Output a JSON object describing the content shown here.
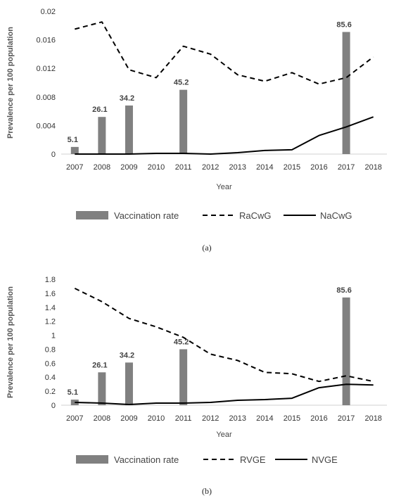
{
  "figure": {
    "caption_a": "(a)",
    "caption_b": "(b)"
  },
  "chart_data": [
    {
      "type": "bar",
      "panel": "a",
      "categories": [
        "2007",
        "2008",
        "2009",
        "2010",
        "2011",
        "2012",
        "2013",
        "2014",
        "2015",
        "2016",
        "2017",
        "2018"
      ],
      "xlabel": "Year",
      "ylabel": "Prevalence per 100 population",
      "ylim": [
        0,
        0.02
      ],
      "yticks": [
        "0",
        "0.004",
        "0.008",
        "0.012",
        "0.016",
        "0.02"
      ],
      "ytick_values": [
        0,
        0.004,
        0.008,
        0.012,
        0.016,
        0.02
      ],
      "grid": false,
      "legend_position": "bottom",
      "bars": {
        "name": "Vaccination rate",
        "color": "#808080",
        "values": [
          0.001,
          0.0052,
          0.0068,
          null,
          0.009,
          null,
          null,
          null,
          null,
          null,
          0.0171,
          null
        ],
        "labels": [
          "5.1",
          "26.1",
          "34.2",
          null,
          "45.2",
          null,
          null,
          null,
          null,
          null,
          "85.6",
          null
        ]
      },
      "series": [
        {
          "name": "RaCwG",
          "style": "dashed",
          "color": "#000000",
          "values": [
            0.0175,
            0.0185,
            0.0118,
            0.0107,
            0.0151,
            0.014,
            0.0111,
            0.0102,
            0.0114,
            0.0098,
            0.0107,
            0.0136
          ]
        },
        {
          "name": "NaCwG",
          "style": "solid",
          "color": "#000000",
          "values": [
            0.0,
            0.0,
            0.0,
            0.0001,
            0.0001,
            0.0,
            0.0002,
            0.0005,
            0.0006,
            0.0026,
            0.0038,
            0.0052
          ]
        }
      ]
    },
    {
      "type": "bar",
      "panel": "b",
      "categories": [
        "2007",
        "2008",
        "2009",
        "2010",
        "2011",
        "2012",
        "2013",
        "2014",
        "2015",
        "2016",
        "2017",
        "2018"
      ],
      "xlabel": "Year",
      "ylabel": "Prevalence per 100 population",
      "ylim": [
        0,
        1.8
      ],
      "yticks": [
        "0",
        "0.2",
        "0.4",
        "0.6",
        "0.8",
        "1",
        "1.2",
        "1.4",
        "1.6",
        "1.8"
      ],
      "ytick_values": [
        0,
        0.2,
        0.4,
        0.6,
        0.8,
        1.0,
        1.2,
        1.4,
        1.6,
        1.8
      ],
      "grid": false,
      "legend_position": "bottom",
      "bars": {
        "name": "Vaccination rate",
        "color": "#808080",
        "values": [
          0.08,
          0.47,
          0.61,
          null,
          0.8,
          null,
          null,
          null,
          null,
          null,
          1.54,
          null
        ],
        "labels": [
          "5.1",
          "26.1",
          "34.2",
          null,
          "45.2",
          null,
          null,
          null,
          null,
          null,
          "85.6",
          null
        ]
      },
      "series": [
        {
          "name": "RVGE",
          "style": "dashed",
          "color": "#000000",
          "values": [
            1.67,
            1.48,
            1.24,
            1.12,
            0.97,
            0.73,
            0.64,
            0.47,
            0.45,
            0.34,
            0.42,
            0.34
          ]
        },
        {
          "name": "NVGE",
          "style": "solid",
          "color": "#000000",
          "values": [
            0.04,
            0.03,
            0.01,
            0.03,
            0.03,
            0.04,
            0.07,
            0.08,
            0.1,
            0.25,
            0.3,
            0.29
          ]
        }
      ]
    }
  ]
}
